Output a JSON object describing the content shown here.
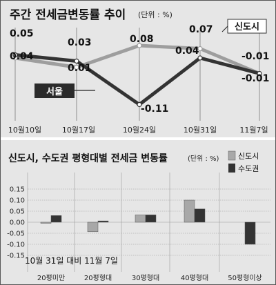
{
  "chart_data": [
    {
      "type": "line",
      "title": "주간 전세금변동률 추이",
      "unit": "(단위 : %)",
      "categories": [
        "10월10일",
        "10월17일",
        "10월24일",
        "10월31일",
        "11월7일"
      ],
      "series": [
        {
          "name": "신도시",
          "values": [
            0.04,
            0.01,
            0.08,
            0.07,
            -0.01
          ],
          "labels": [
            "0.04",
            "0.01",
            "0.08",
            "0.07",
            "-0.01"
          ]
        },
        {
          "name": "서울",
          "values": [
            0.05,
            0.03,
            -0.11,
            0.04,
            -0.01
          ],
          "labels": [
            "0.05",
            "0.03",
            "-0.11",
            "0.04",
            "-0.01"
          ]
        }
      ],
      "ylim": [
        -0.13,
        0.1
      ],
      "colors": {
        "신도시": "#9e9e9e",
        "서울": "#333333"
      },
      "grid": false,
      "vertical_guides": true
    },
    {
      "type": "bar",
      "title": "신도시, 수도권 평형대별 전세금 변동률",
      "unit": "(단위 : %)",
      "categories": [
        "20평미만",
        "20평형대",
        "30평형대",
        "40평형대",
        "50평형이상"
      ],
      "series": [
        {
          "name": "신도시",
          "values": [
            -0.005,
            -0.043,
            0.033,
            0.1,
            0.0
          ]
        },
        {
          "name": "수도권",
          "values": [
            0.03,
            0.006,
            0.033,
            0.06,
            -0.1
          ]
        }
      ],
      "yticks": [
        "0.15",
        "0.10",
        "0.05",
        "0.00",
        "-0.05",
        "-0.10",
        "-0.15"
      ],
      "ylim": [
        -0.15,
        0.15
      ],
      "annotation": "10월 31일 대비 11월 7일",
      "legend_position": "top-right",
      "colors": {
        "신도시": "#a8a8a8",
        "수도권": "#333333"
      },
      "grid": true
    }
  ]
}
